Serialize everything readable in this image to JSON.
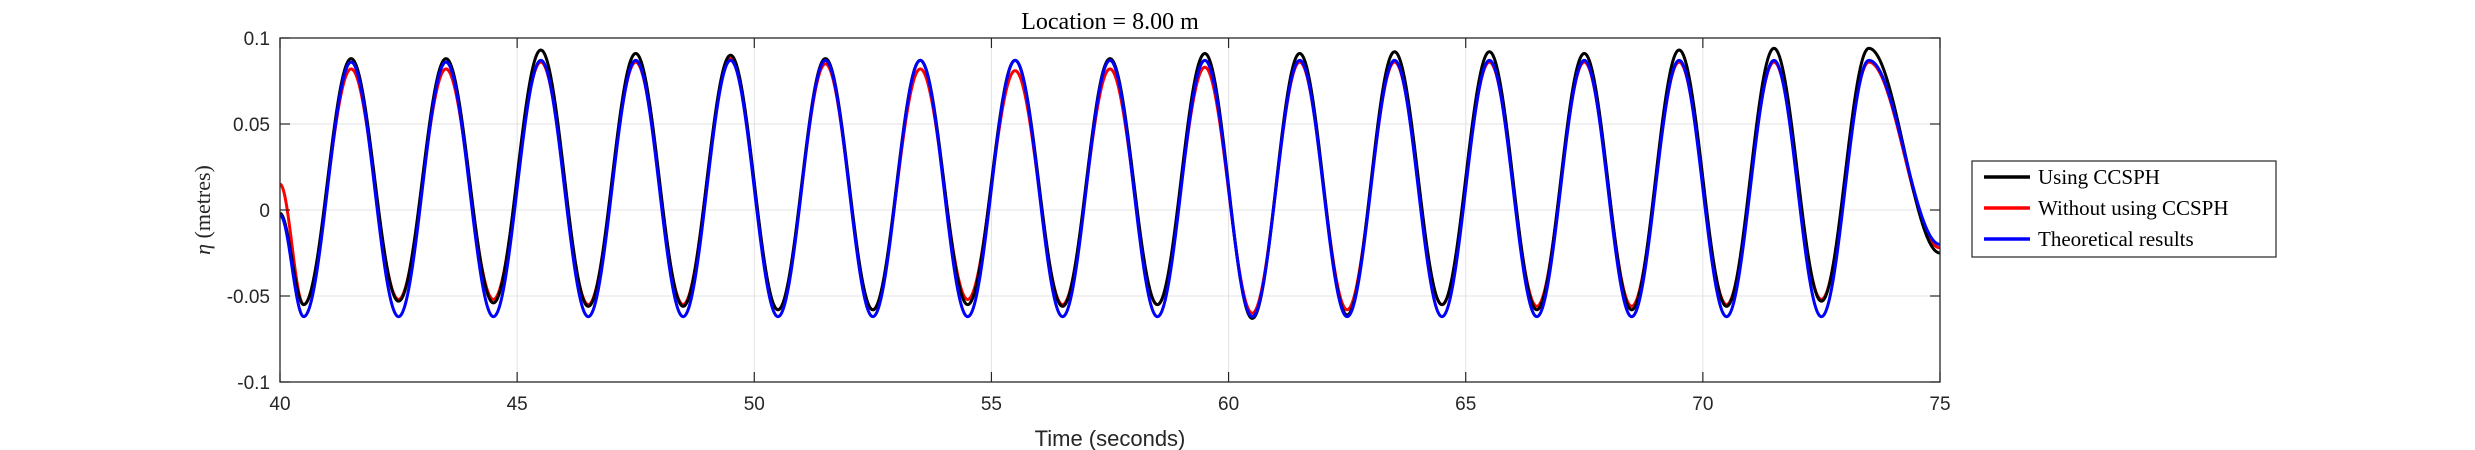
{
  "chart_data": {
    "type": "line",
    "title": "Location = 8.00 m",
    "xlabel": "Time (seconds)",
    "ylabel_symbol": "η",
    "ylabel_unit": " (metres)",
    "xlim": [
      40,
      75
    ],
    "ylim": [
      -0.1,
      0.1
    ],
    "xticks": [
      40,
      45,
      50,
      55,
      60,
      65,
      70,
      75
    ],
    "xtick_labels": [
      "40",
      "45",
      "50",
      "55",
      "60",
      "65",
      "70",
      "75"
    ],
    "yticks": [
      -0.1,
      -0.05,
      0,
      0.05,
      0.1
    ],
    "ytick_labels": [
      "-0.1",
      "-0.05",
      "0",
      "0.05",
      "0.1"
    ],
    "grid": true,
    "legend_position": "outside-right",
    "wave_period": 2.0,
    "series": [
      {
        "name": "Using CCSPH",
        "color": "#000000",
        "start_value": -0.002,
        "crests": [
          0.088,
          0.088,
          0.093,
          0.091,
          0.09,
          0.088,
          0.087,
          0.087,
          0.088,
          0.091,
          0.091,
          0.092,
          0.092,
          0.091,
          0.093,
          0.094,
          0.094
        ],
        "troughs": [
          -0.055,
          -0.053,
          -0.054,
          -0.056,
          -0.056,
          -0.058,
          -0.058,
          -0.055,
          -0.056,
          -0.055,
          -0.063,
          -0.061,
          -0.055,
          -0.058,
          -0.058,
          -0.056,
          -0.053
        ],
        "end_value": -0.025
      },
      {
        "name": "Without using CCSPH",
        "color": "#ff0000",
        "start_value": 0.015,
        "crests": [
          0.082,
          0.082,
          0.086,
          0.086,
          0.088,
          0.085,
          0.082,
          0.081,
          0.082,
          0.083,
          0.086,
          0.086,
          0.086,
          0.086,
          0.086,
          0.086,
          0.086
        ],
        "troughs": [
          -0.055,
          -0.052,
          -0.052,
          -0.055,
          -0.055,
          -0.058,
          -0.058,
          -0.052,
          -0.055,
          -0.055,
          -0.06,
          -0.058,
          -0.055,
          -0.056,
          -0.056,
          -0.055,
          -0.052
        ],
        "end_value": -0.022
      },
      {
        "name": "Theoretical results",
        "color": "#0000ff",
        "start_value": -0.003,
        "crests": [
          0.086,
          0.086,
          0.087,
          0.087,
          0.087,
          0.087,
          0.087,
          0.087,
          0.087,
          0.087,
          0.087,
          0.087,
          0.087,
          0.087,
          0.087,
          0.087,
          0.087
        ],
        "troughs": [
          -0.062,
          -0.062,
          -0.062,
          -0.062,
          -0.062,
          -0.062,
          -0.062,
          -0.062,
          -0.062,
          -0.062,
          -0.062,
          -0.062,
          -0.062,
          -0.062,
          -0.062,
          -0.062,
          -0.062
        ],
        "end_value": -0.02
      }
    ]
  }
}
